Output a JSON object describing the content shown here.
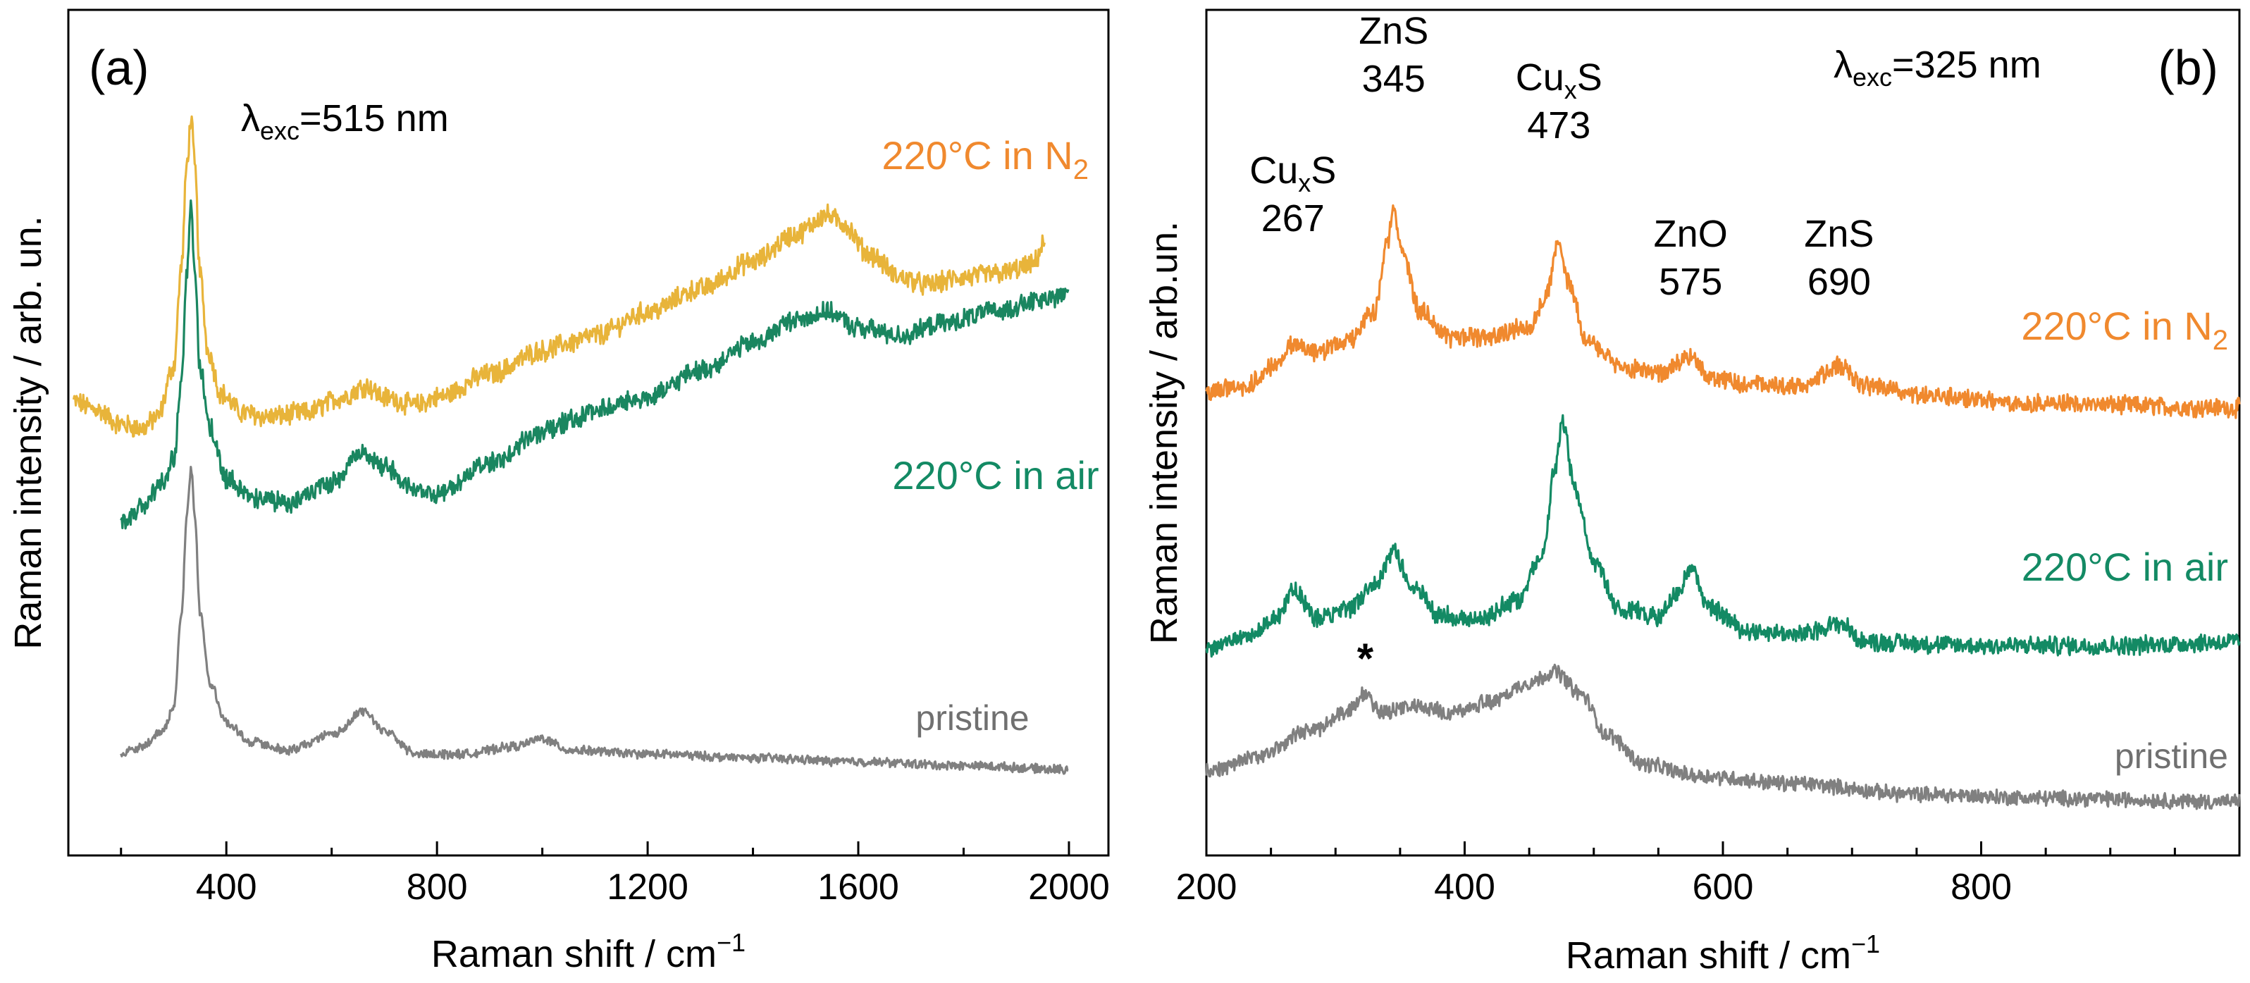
{
  "chart_data": [
    {
      "type": "line",
      "panel_label": "(a)",
      "excitation": {
        "prefix": "λ",
        "sub": "exc",
        "rest": "=515 nm"
      },
      "xlabel": "Raman shift / cm",
      "xlabel_sup": "−1",
      "ylabel": "Raman intensity / arb. un.",
      "xlim": [
        100,
        2075
      ],
      "ylim": [
        0,
        1
      ],
      "xticks": [
        400,
        800,
        1200,
        1600,
        2000
      ],
      "xtick_labels": [
        "400",
        "800",
        "1200",
        "1600",
        "2000"
      ],
      "minor_step": 200,
      "y_ticks_shown": false,
      "series": [
        {
          "name": "220°C in N2",
          "label": {
            "main": "220°C in N",
            "sub": "2"
          },
          "color": "#e8b43a",
          "noise": 0.012,
          "points": [
            [
              110,
              0.555
            ],
            [
              150,
              0.545
            ],
            [
              200,
              0.525
            ],
            [
              240,
              0.52
            ],
            [
              270,
              0.535
            ],
            [
              300,
              0.6
            ],
            [
              315,
              0.73
            ],
            [
              325,
              0.86
            ],
            [
              333,
              0.92
            ],
            [
              340,
              0.86
            ],
            [
              350,
              0.72
            ],
            [
              365,
              0.62
            ],
            [
              390,
              0.565
            ],
            [
              430,
              0.54
            ],
            [
              480,
              0.535
            ],
            [
              550,
              0.54
            ],
            [
              620,
              0.56
            ],
            [
              665,
              0.575
            ],
            [
              700,
              0.56
            ],
            [
              760,
              0.55
            ],
            [
              800,
              0.56
            ],
            [
              900,
              0.59
            ],
            [
              1000,
              0.62
            ],
            [
              1050,
              0.63
            ],
            [
              1100,
              0.64
            ],
            [
              1200,
              0.67
            ],
            [
              1300,
              0.7
            ],
            [
              1400,
              0.735
            ],
            [
              1480,
              0.77
            ],
            [
              1540,
              0.795
            ],
            [
              1570,
              0.785
            ],
            [
              1620,
              0.745
            ],
            [
              1680,
              0.715
            ],
            [
              1730,
              0.705
            ],
            [
              1800,
              0.715
            ],
            [
              1870,
              0.72
            ],
            [
              1930,
              0.73
            ],
            [
              1955,
              0.76
            ]
          ]
        },
        {
          "name": "220°C in air",
          "label": {
            "main": "220°C in air",
            "sub": ""
          },
          "color": "#1a8660",
          "noise": 0.011,
          "points": [
            [
              200,
              0.4
            ],
            [
              240,
              0.42
            ],
            [
              280,
              0.45
            ],
            [
              300,
              0.48
            ],
            [
              315,
              0.58
            ],
            [
              325,
              0.72
            ],
            [
              333,
              0.81
            ],
            [
              340,
              0.72
            ],
            [
              350,
              0.6
            ],
            [
              370,
              0.52
            ],
            [
              400,
              0.455
            ],
            [
              450,
              0.43
            ],
            [
              520,
              0.425
            ],
            [
              600,
              0.45
            ],
            [
              660,
              0.49
            ],
            [
              700,
              0.47
            ],
            [
              760,
              0.44
            ],
            [
              800,
              0.435
            ],
            [
              900,
              0.475
            ],
            [
              1000,
              0.515
            ],
            [
              1070,
              0.535
            ],
            [
              1100,
              0.545
            ],
            [
              1200,
              0.56
            ],
            [
              1300,
              0.595
            ],
            [
              1400,
              0.63
            ],
            [
              1480,
              0.66
            ],
            [
              1540,
              0.67
            ],
            [
              1600,
              0.65
            ],
            [
              1680,
              0.64
            ],
            [
              1760,
              0.655
            ],
            [
              1850,
              0.67
            ],
            [
              1950,
              0.685
            ],
            [
              2000,
              0.695
            ]
          ]
        },
        {
          "name": "pristine",
          "label": {
            "main": "pristine",
            "sub": ""
          },
          "color": "#808080",
          "noise": 0.005,
          "points": [
            [
              200,
              0.1
            ],
            [
              240,
              0.11
            ],
            [
              280,
              0.13
            ],
            [
              300,
              0.16
            ],
            [
              315,
              0.28
            ],
            [
              325,
              0.41
            ],
            [
              333,
              0.47
            ],
            [
              340,
              0.41
            ],
            [
              350,
              0.28
            ],
            [
              370,
              0.19
            ],
            [
              400,
              0.14
            ],
            [
              450,
              0.115
            ],
            [
              520,
              0.105
            ],
            [
              600,
              0.125
            ],
            [
              660,
              0.155
            ],
            [
              700,
              0.13
            ],
            [
              760,
              0.1
            ],
            [
              850,
              0.1
            ],
            [
              950,
              0.11
            ],
            [
              1000,
              0.12
            ],
            [
              1050,
              0.105
            ],
            [
              1200,
              0.1
            ],
            [
              1400,
              0.095
            ],
            [
              1600,
              0.09
            ],
            [
              1800,
              0.085
            ],
            [
              2000,
              0.08
            ]
          ]
        }
      ]
    },
    {
      "type": "line",
      "panel_label": "(b)",
      "excitation": {
        "prefix": "λ",
        "sub": "exc",
        "rest": "=325 nm"
      },
      "xlabel": "Raman shift / cm",
      "xlabel_sup": "−1",
      "ylabel": "Raman intensity / arb.un.",
      "xlim": [
        200,
        1000
      ],
      "ylim": [
        0,
        1
      ],
      "xticks": [
        200,
        400,
        600,
        800
      ],
      "xtick_labels": [
        "200",
        "400",
        "600",
        "800"
      ],
      "minor_step": 50,
      "y_ticks_shown": false,
      "peak_annotations": [
        {
          "x": 267,
          "name": "Cu",
          "sub": "x",
          "rest": "S",
          "value": "267"
        },
        {
          "x": 345,
          "name": "ZnS",
          "sub": "",
          "rest": "",
          "value": "345"
        },
        {
          "x": 473,
          "name": "Cu",
          "sub": "x",
          "rest": "S",
          "value": "473"
        },
        {
          "x": 575,
          "name": "ZnO",
          "sub": "",
          "rest": "",
          "value": "575"
        },
        {
          "x": 690,
          "name": "ZnS",
          "sub": "",
          "rest": "",
          "value": "690"
        }
      ],
      "marker_annotation": {
        "x": 323,
        "text": "*"
      },
      "series": [
        {
          "name": "220°C in N2",
          "label": {
            "main": "220°C in N",
            "sub": "2"
          },
          "color": "#f0892e",
          "noise": 0.011,
          "points": [
            [
              200,
              0.59
            ],
            [
              230,
              0.6
            ],
            [
              255,
              0.63
            ],
            [
              268,
              0.655
            ],
            [
              285,
              0.645
            ],
            [
              310,
              0.66
            ],
            [
              330,
              0.7
            ],
            [
              340,
              0.79
            ],
            [
              345,
              0.84
            ],
            [
              352,
              0.78
            ],
            [
              365,
              0.7
            ],
            [
              390,
              0.665
            ],
            [
              420,
              0.665
            ],
            [
              450,
              0.68
            ],
            [
              463,
              0.72
            ],
            [
              473,
              0.79
            ],
            [
              480,
              0.74
            ],
            [
              495,
              0.66
            ],
            [
              520,
              0.625
            ],
            [
              550,
              0.615
            ],
            [
              575,
              0.64
            ],
            [
              590,
              0.61
            ],
            [
              620,
              0.6
            ],
            [
              660,
              0.6
            ],
            [
              690,
              0.625
            ],
            [
              710,
              0.6
            ],
            [
              760,
              0.585
            ],
            [
              850,
              0.575
            ],
            [
              1000,
              0.57
            ]
          ]
        },
        {
          "name": "220°C in air",
          "label": {
            "main": "220°C in air",
            "sub": ""
          },
          "color": "#138a64",
          "noise": 0.011,
          "points": [
            [
              200,
              0.245
            ],
            [
              235,
              0.265
            ],
            [
              255,
              0.29
            ],
            [
              268,
              0.325
            ],
            [
              285,
              0.285
            ],
            [
              310,
              0.3
            ],
            [
              330,
              0.33
            ],
            [
              345,
              0.375
            ],
            [
              360,
              0.33
            ],
            [
              380,
              0.29
            ],
            [
              410,
              0.285
            ],
            [
              440,
              0.31
            ],
            [
              460,
              0.37
            ],
            [
              470,
              0.49
            ],
            [
              476,
              0.55
            ],
            [
              485,
              0.46
            ],
            [
              500,
              0.36
            ],
            [
              520,
              0.3
            ],
            [
              550,
              0.29
            ],
            [
              565,
              0.32
            ],
            [
              575,
              0.355
            ],
            [
              590,
              0.3
            ],
            [
              620,
              0.27
            ],
            [
              660,
              0.265
            ],
            [
              690,
              0.28
            ],
            [
              710,
              0.255
            ],
            [
              800,
              0.25
            ],
            [
              900,
              0.25
            ],
            [
              1000,
              0.255
            ]
          ]
        },
        {
          "name": "pristine",
          "label": {
            "main": "pristine",
            "sub": ""
          },
          "color": "#808080",
          "noise": 0.009,
          "points": [
            [
              200,
              0.08
            ],
            [
              240,
              0.1
            ],
            [
              280,
              0.135
            ],
            [
              310,
              0.16
            ],
            [
              323,
              0.185
            ],
            [
              335,
              0.16
            ],
            [
              360,
              0.17
            ],
            [
              390,
              0.16
            ],
            [
              420,
              0.175
            ],
            [
              450,
              0.2
            ],
            [
              470,
              0.215
            ],
            [
              490,
              0.185
            ],
            [
              510,
              0.13
            ],
            [
              540,
              0.09
            ],
            [
              580,
              0.075
            ],
            [
              650,
              0.065
            ],
            [
              750,
              0.05
            ],
            [
              850,
              0.045
            ],
            [
              1000,
              0.04
            ]
          ]
        }
      ]
    }
  ]
}
